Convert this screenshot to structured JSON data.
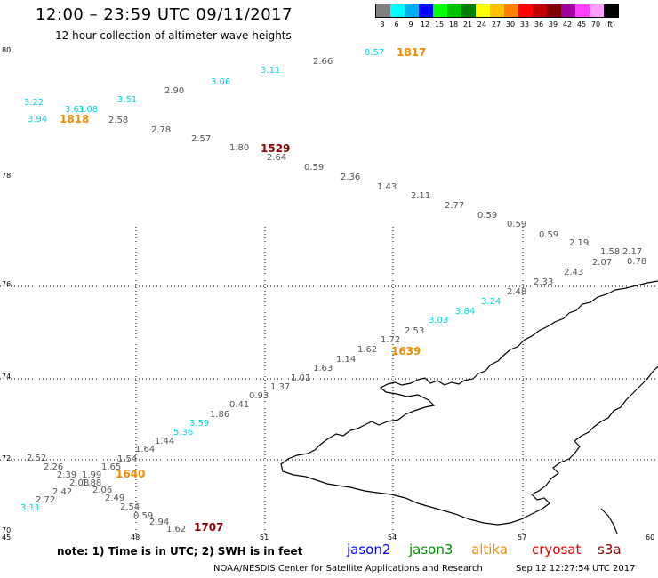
{
  "header": {
    "title": "12:00 – 23:59 UTC 09/11/2017",
    "subtitle": "12 hour collection of altimeter wave heights"
  },
  "scale": {
    "colors": [
      "#808080",
      "#00ffff",
      "#00b0f0",
      "#0000ff",
      "#00ff00",
      "#00c000",
      "#008000",
      "#ffff00",
      "#ffc000",
      "#ff8000",
      "#ff0000",
      "#c00000",
      "#800000",
      "#a000a0",
      "#ff40ff",
      "#ffa0ff",
      "#000000"
    ],
    "labels": [
      "3",
      "6",
      "9",
      "12",
      "15",
      "18",
      "21",
      "24",
      "27",
      "30",
      "33",
      "36",
      "39",
      "42",
      "45",
      "70",
      "(ft)"
    ]
  },
  "axes": {
    "lat_labels": [
      "80",
      "78",
      "76",
      "74",
      "72",
      "70"
    ],
    "lon_labels": [
      "45",
      "48",
      "51",
      "54",
      "57",
      "60"
    ]
  },
  "colors": {
    "gray": "#555555",
    "cyan": "#00d8e8",
    "altika": "#f08c00",
    "cryosat": "#8b0000"
  },
  "points": [
    {
      "v": "2.66",
      "c": "gray"
    },
    {
      "v": "8.57",
      "c": "cyan"
    },
    {
      "v": "3.11",
      "c": "cyan"
    },
    {
      "v": "3.06",
      "c": "cyan"
    },
    {
      "v": "2.90",
      "c": "gray"
    },
    {
      "v": "3.51",
      "c": "cyan"
    },
    {
      "v": "3.22",
      "c": "cyan"
    },
    {
      "v": "3.61",
      "c": "cyan"
    },
    {
      "v": "3.08",
      "c": "cyan"
    },
    {
      "v": "3.94",
      "c": "cyan"
    },
    {
      "v": "2.58",
      "c": "gray"
    },
    {
      "v": "2.78",
      "c": "gray"
    },
    {
      "v": "2.57",
      "c": "gray"
    },
    {
      "v": "1.80",
      "c": "gray"
    },
    {
      "v": "2.64",
      "c": "gray"
    },
    {
      "v": "0.59",
      "c": "gray"
    },
    {
      "v": "2.36",
      "c": "gray"
    },
    {
      "v": "1.43",
      "c": "gray"
    },
    {
      "v": "2.11",
      "c": "gray"
    },
    {
      "v": "2.77",
      "c": "gray"
    },
    {
      "v": "0.59",
      "c": "gray"
    },
    {
      "v": "0.59",
      "c": "gray"
    },
    {
      "v": "0.59",
      "c": "gray"
    },
    {
      "v": "2.19",
      "c": "gray"
    },
    {
      "v": "1.58",
      "c": "gray"
    },
    {
      "v": "2.17",
      "c": "gray"
    },
    {
      "v": "2.07",
      "c": "gray"
    },
    {
      "v": "0.78",
      "c": "gray"
    },
    {
      "v": "2.43",
      "c": "gray"
    },
    {
      "v": "2.33",
      "c": "gray"
    },
    {
      "v": "2.48",
      "c": "gray"
    },
    {
      "v": "3.24",
      "c": "cyan"
    },
    {
      "v": "3.84",
      "c": "cyan"
    },
    {
      "v": "3.03",
      "c": "cyan"
    },
    {
      "v": "2.53",
      "c": "gray"
    },
    {
      "v": "1.72",
      "c": "gray"
    },
    {
      "v": "1.62",
      "c": "gray"
    },
    {
      "v": "1.14",
      "c": "gray"
    },
    {
      "v": "1.63",
      "c": "gray"
    },
    {
      "v": "1.01",
      "c": "gray"
    },
    {
      "v": "1.37",
      "c": "gray"
    },
    {
      "v": "0.93",
      "c": "gray"
    },
    {
      "v": "0.41",
      "c": "gray"
    },
    {
      "v": "1.86",
      "c": "gray"
    },
    {
      "v": "3.59",
      "c": "cyan"
    },
    {
      "v": "5.36",
      "c": "cyan"
    },
    {
      "v": "1.44",
      "c": "gray"
    },
    {
      "v": "1.64",
      "c": "gray"
    },
    {
      "v": "1.54",
      "c": "gray"
    },
    {
      "v": "1.65",
      "c": "gray"
    },
    {
      "v": "2.52",
      "c": "gray"
    },
    {
      "v": "2.26",
      "c": "gray"
    },
    {
      "v": "2.39",
      "c": "gray"
    },
    {
      "v": "1.99",
      "c": "gray"
    },
    {
      "v": "2.08",
      "c": "gray"
    },
    {
      "v": "1.88",
      "c": "gray"
    },
    {
      "v": "2.42",
      "c": "gray"
    },
    {
      "v": "2.06",
      "c": "gray"
    },
    {
      "v": "2.72",
      "c": "gray"
    },
    {
      "v": "2.49",
      "c": "gray"
    },
    {
      "v": "3.11",
      "c": "cyan"
    },
    {
      "v": "2.54",
      "c": "gray"
    },
    {
      "v": "0.59",
      "c": "gray"
    },
    {
      "v": "2.94",
      "c": "gray"
    },
    {
      "v": "1.62",
      "c": "gray"
    }
  ],
  "times": [
    {
      "v": "1817",
      "c": "altika"
    },
    {
      "v": "1818",
      "c": "altika"
    },
    {
      "v": "1529",
      "c": "cryosat"
    },
    {
      "v": "1639",
      "c": "altika"
    },
    {
      "v": "1640",
      "c": "altika"
    },
    {
      "v": "1707",
      "c": "cryosat"
    }
  ],
  "footer": {
    "note": "note: 1) Time is in UTC; 2) SWH is in feet",
    "legend": [
      {
        "label": "jason2",
        "color": "#0000ff"
      },
      {
        "label": "jason3",
        "color": "#009000"
      },
      {
        "label": "altika",
        "color": "#f08c00"
      },
      {
        "label": "cryosat",
        "color": "#e00000"
      },
      {
        "label": "s3a",
        "color": "#8b0000"
      }
    ],
    "credit": "NOAA/NESDIS Center for Satellite Applications and Research",
    "timestamp": "Sep 12 12:27:54 UTC 2017"
  }
}
